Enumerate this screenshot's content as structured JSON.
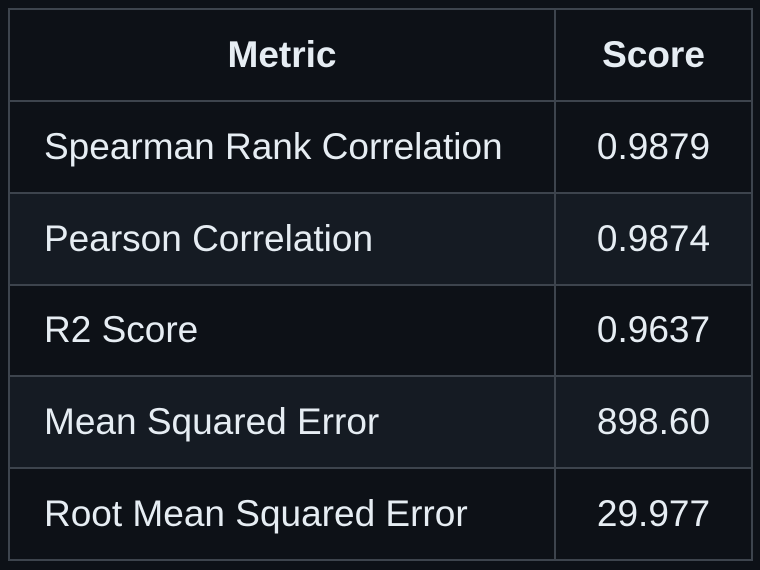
{
  "table": {
    "headers": [
      "Metric",
      "Score"
    ],
    "rows": [
      {
        "metric": "Spearman Rank Correlation",
        "score": "0.9879"
      },
      {
        "metric": "Pearson Correlation",
        "score": "0.9874"
      },
      {
        "metric": "R2 Score",
        "score": "0.9637"
      },
      {
        "metric": "Mean Squared Error",
        "score": "898.60"
      },
      {
        "metric": "Root Mean Squared Error",
        "score": "29.977"
      }
    ]
  },
  "colors": {
    "background": "#0d1117",
    "row_alt": "#151b23",
    "border": "#3d444d",
    "text": "#e6edf3"
  }
}
